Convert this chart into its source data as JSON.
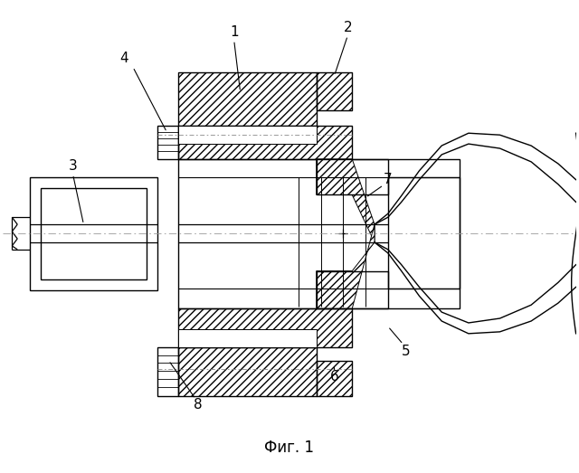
{
  "title": "Фиг. 1",
  "background_color": "#ffffff",
  "line_color": "#000000",
  "fig_width": 6.4,
  "fig_height": 5.23
}
